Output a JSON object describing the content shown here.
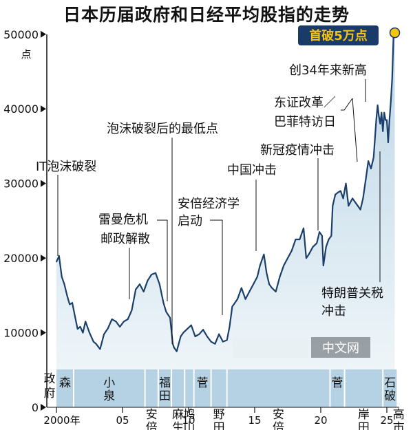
{
  "chart_data": {
    "type": "area",
    "title": "日本历届政府和日经平均股指的走势",
    "y_unit": "点",
    "ylim": [
      0,
      51000
    ],
    "xlim": [
      2000.0,
      2025.6
    ],
    "y_ticks": [
      {
        "value": 0,
        "label": "0"
      },
      {
        "value": 10000,
        "label": "10000"
      },
      {
        "value": 20000,
        "label": "20000"
      },
      {
        "value": 30000,
        "label": "30000"
      },
      {
        "value": 40000,
        "label": "40000"
      },
      {
        "value": 50000,
        "label": "50000"
      }
    ],
    "x_ticks": [
      {
        "value": 2000,
        "label": "2000年"
      },
      {
        "value": 2005,
        "label": "05"
      },
      {
        "value": 2010,
        "label": "10"
      },
      {
        "value": 2015,
        "label": "15"
      },
      {
        "value": 2020,
        "label": "20"
      },
      {
        "value": 2025,
        "label": "25"
      }
    ],
    "series": [
      {
        "color": "#1b3f6b",
        "x": [
          2000.0,
          2000.2,
          2000.4,
          2000.6,
          2000.8,
          2001.0,
          2001.2,
          2001.4,
          2001.6,
          2001.8,
          2002.0,
          2002.2,
          2002.5,
          2002.8,
          2003.0,
          2003.3,
          2003.6,
          2003.9,
          2004.2,
          2004.5,
          2004.8,
          2005.1,
          2005.4,
          2005.7,
          2006.0,
          2006.3,
          2006.6,
          2006.9,
          2007.2,
          2007.5,
          2007.8,
          2008.1,
          2008.3,
          2008.6,
          2008.8,
          2008.9,
          2009.1,
          2009.4,
          2009.6,
          2009.9,
          2010.2,
          2010.5,
          2010.8,
          2011.1,
          2011.4,
          2011.7,
          2012.0,
          2012.3,
          2012.6,
          2012.9,
          2013.1,
          2013.3,
          2013.5,
          2013.7,
          2014.0,
          2014.3,
          2014.6,
          2014.9,
          2015.2,
          2015.4,
          2015.7,
          2015.9,
          2016.1,
          2016.3,
          2016.6,
          2016.9,
          2017.2,
          2017.5,
          2017.8,
          2018.1,
          2018.4,
          2018.7,
          2018.9,
          2019.1,
          2019.4,
          2019.7,
          2019.9,
          2020.1,
          2020.2,
          2020.4,
          2020.6,
          2020.8,
          2020.9,
          2021.1,
          2021.3,
          2021.5,
          2021.7,
          2021.9,
          2022.1,
          2022.4,
          2022.6,
          2022.8,
          2023.0,
          2023.2,
          2023.4,
          2023.6,
          2023.8,
          2024.0,
          2024.1,
          2024.2,
          2024.3,
          2024.4,
          2024.5,
          2024.6,
          2024.7,
          2024.8,
          2024.9,
          2025.0,
          2025.1,
          2025.2,
          2025.3,
          2025.4,
          2025.5,
          2025.6
        ],
        "y": [
          19500,
          20300,
          17500,
          16500,
          15000,
          13800,
          14000,
          12200,
          10500,
          10800,
          10000,
          11500,
          10000,
          8800,
          8500,
          7800,
          9800,
          10600,
          11800,
          11500,
          10800,
          11500,
          11800,
          13000,
          15800,
          16500,
          15500,
          17000,
          17800,
          18000,
          16500,
          14000,
          12800,
          12000,
          8500,
          8000,
          7500,
          9500,
          10000,
          10500,
          11000,
          9500,
          9800,
          10400,
          9500,
          8800,
          8500,
          9800,
          8800,
          9000,
          10800,
          13500,
          14000,
          14500,
          16000,
          14500,
          15500,
          16500,
          17500,
          19000,
          20500,
          18000,
          16500,
          16000,
          15500,
          17500,
          19000,
          20000,
          21000,
          22500,
          22500,
          24000,
          20000,
          20500,
          21500,
          22000,
          23500,
          23000,
          19000,
          21500,
          22500,
          23000,
          27000,
          28500,
          28800,
          29000,
          28000,
          30000,
          27000,
          28000,
          27500,
          27000,
          26500,
          28000,
          30500,
          33000,
          32000,
          33500,
          36000,
          38500,
          40500,
          39000,
          38000,
          39500,
          37000,
          39500,
          38500,
          38500,
          35500,
          38500,
          41000,
          44000,
          49500,
          50200
        ]
      }
    ],
    "highlight": {
      "x": 2025.6,
      "y": 50200,
      "label": "首破5万点"
    },
    "annotations": [
      {
        "text": "IT泡沫破裂",
        "x": 2000.2,
        "y": 20300
      },
      {
        "text": "雷曼危机",
        "x": 2008.5,
        "y": 14000
      },
      {
        "text": "邮政解散",
        "x": 2005.6,
        "y": 14000
      },
      {
        "text": "泡沫破裂后的最低点",
        "x": 2009.1,
        "y": 7500
      },
      {
        "text": "安倍经济学",
        "x": 2012.8,
        "y": 12500
      },
      {
        "text": "启动",
        "x": 2012.8,
        "y": 12500
      },
      {
        "text": "中国冲击",
        "x": 2015.5,
        "y": 20500
      },
      {
        "text": "新冠疫情冲击",
        "x": 2020.2,
        "y": 23000
      },
      {
        "text": "东证改革／",
        "x": 2023.2,
        "y": 33000
      },
      {
        "text": "巴菲特访日",
        "x": 2023.2,
        "y": 33000
      },
      {
        "text": "创34年来新高",
        "x": 2024.1,
        "y": 40800
      },
      {
        "text": "特朗普关税",
        "x": 2025.1,
        "y": 38000
      },
      {
        "text": "冲击",
        "x": 2025.1,
        "y": 38000
      }
    ]
  },
  "government_band": {
    "row_label": [
      "政",
      "府"
    ],
    "segments": [
      {
        "start": 2000.0,
        "end": 2001.3,
        "row": "top",
        "chars": [
          "森"
        ]
      },
      {
        "start": 2001.3,
        "end": 2006.7,
        "row": "top",
        "chars": [
          "小",
          "泉"
        ]
      },
      {
        "start": 2006.7,
        "end": 2007.7,
        "row": "bottom",
        "chars": [
          "安",
          "倍"
        ]
      },
      {
        "start": 2007.7,
        "end": 2008.7,
        "row": "top",
        "chars": [
          "福",
          "田"
        ]
      },
      {
        "start": 2008.7,
        "end": 2009.7,
        "row": "bottom",
        "chars": [
          "麻",
          "生"
        ]
      },
      {
        "start": 2009.7,
        "end": 2010.4,
        "row": "bottom",
        "chars": [
          "鸠",
          "山"
        ]
      },
      {
        "start": 2010.4,
        "end": 2011.7,
        "row": "top",
        "chars": [
          "菅"
        ]
      },
      {
        "start": 2011.7,
        "end": 2012.9,
        "row": "bottom",
        "chars": [
          "野",
          "田"
        ]
      },
      {
        "start": 2012.9,
        "end": 2020.7,
        "row": "bottom",
        "chars": [
          "安",
          "倍"
        ]
      },
      {
        "start": 2020.7,
        "end": 2021.8,
        "row": "top",
        "chars": [
          "菅"
        ]
      },
      {
        "start": 2021.8,
        "end": 2024.7,
        "row": "bottom",
        "chars": [
          "岸",
          "田"
        ]
      },
      {
        "start": 2024.7,
        "end": 2025.8,
        "row": "top",
        "chars": [
          "石",
          "破"
        ]
      },
      {
        "start": 2025.8,
        "end": 2026.0,
        "row": "bottom",
        "chars": [
          "高",
          "市"
        ]
      }
    ]
  },
  "watermark": "中文网",
  "colors": {
    "line": "#1b3f6b",
    "area_top": "#bcd6e6",
    "area_bottom": "#eef5f9",
    "band": "#b5d2e5",
    "highlight_box": "#1a3a6a",
    "highlight_text": "#f6c50e",
    "highlight_dot": "#f6c50e"
  }
}
